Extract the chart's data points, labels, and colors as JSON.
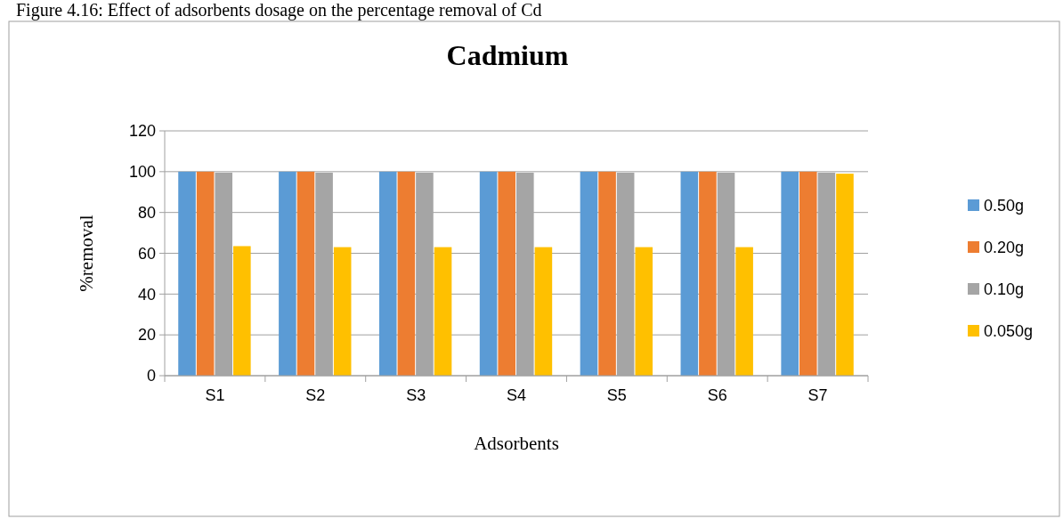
{
  "chart_data": {
    "type": "bar",
    "title": "Cadmium",
    "xlabel": "Adsorbents",
    "ylabel": "%removal",
    "annotations": [
      "Figure 4.16: Effect of adsorbents dosage on the percentage removal of Cd"
    ],
    "categories": [
      "S1",
      "S2",
      "S3",
      "S4",
      "S5",
      "S6",
      "S7"
    ],
    "series": [
      {
        "name": "0.50g",
        "color": "#5b9bd5",
        "values": [
          100,
          100,
          100,
          100,
          100,
          100,
          100
        ]
      },
      {
        "name": "0.20g",
        "color": "#ed7d31",
        "values": [
          100,
          100,
          100,
          100,
          100,
          100,
          100
        ]
      },
      {
        "name": "0.10g",
        "color": "#a5a5a5",
        "values": [
          99.5,
          99.5,
          99.5,
          99.5,
          99.5,
          99.5,
          99.5
        ]
      },
      {
        "name": "0.050g",
        "color": "#ffc000",
        "values": [
          63.5,
          63,
          63,
          63,
          63,
          63,
          99
        ]
      }
    ],
    "ylim": [
      0,
      120
    ],
    "yticks": [
      0,
      20,
      40,
      60,
      80,
      100,
      120
    ],
    "grid": "y",
    "legend": "right"
  }
}
